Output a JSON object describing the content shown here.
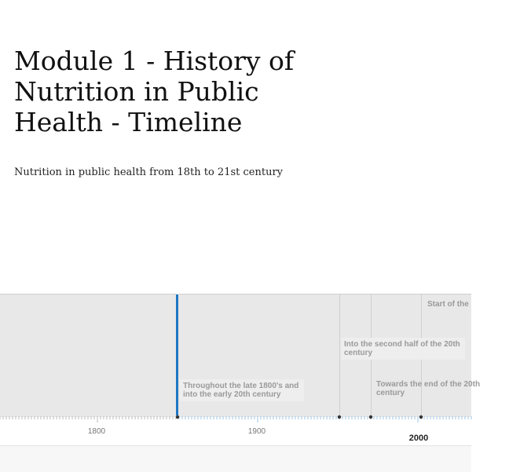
{
  "header": {
    "title": "Module 1 - History of Nutrition in Public Health - Timeline",
    "subtitle": "Nutrition in public health from 18th to 21st century"
  },
  "timeline": {
    "events": [
      {
        "text": "Throughout the late 1800's and into the early 20th century"
      },
      {
        "text": "Into the second half of the 20th century"
      },
      {
        "text": "Towards the end of the 20th century"
      },
      {
        "text": "Start of the"
      }
    ],
    "axis_labels": [
      {
        "text": "1800"
      },
      {
        "text": "1900"
      },
      {
        "text": "2000"
      }
    ],
    "colors": {
      "marker": "#1f77c4",
      "panel": "#e8e8e8"
    }
  }
}
